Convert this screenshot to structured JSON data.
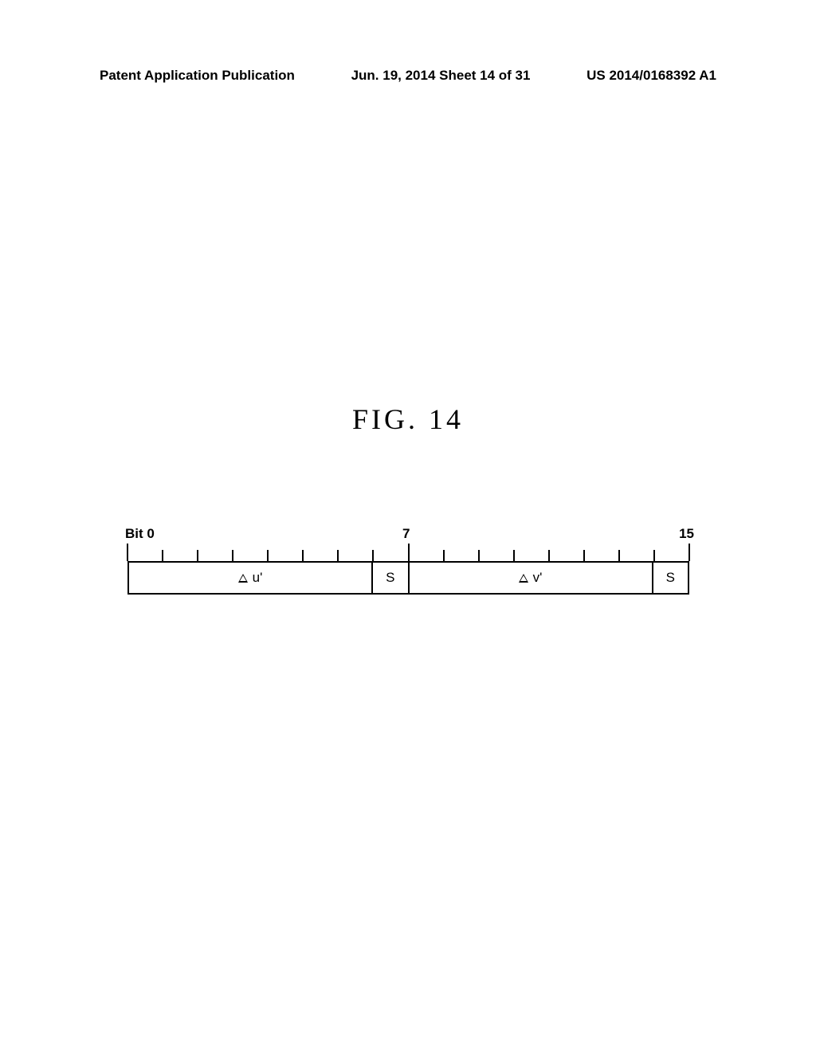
{
  "header": {
    "left": "Patent Application Publication",
    "mid": "Jun. 19, 2014  Sheet 14 of 31",
    "right": "US 2014/0168392 A1"
  },
  "figure": {
    "title": "FIG.  14",
    "bit_labels": {
      "start": "Bit 0",
      "mid": "7",
      "end": "15"
    },
    "ticks": {
      "count": 17,
      "long_indices": [
        0,
        8,
        16
      ]
    },
    "cells": [
      {
        "label_prefix": "triangle",
        "label": " u'",
        "width": "wide"
      },
      {
        "label": "S",
        "width": "narrow"
      },
      {
        "label_prefix": "triangle",
        "label": " v'",
        "width": "wide"
      },
      {
        "label": "S",
        "width": "narrow"
      }
    ]
  }
}
